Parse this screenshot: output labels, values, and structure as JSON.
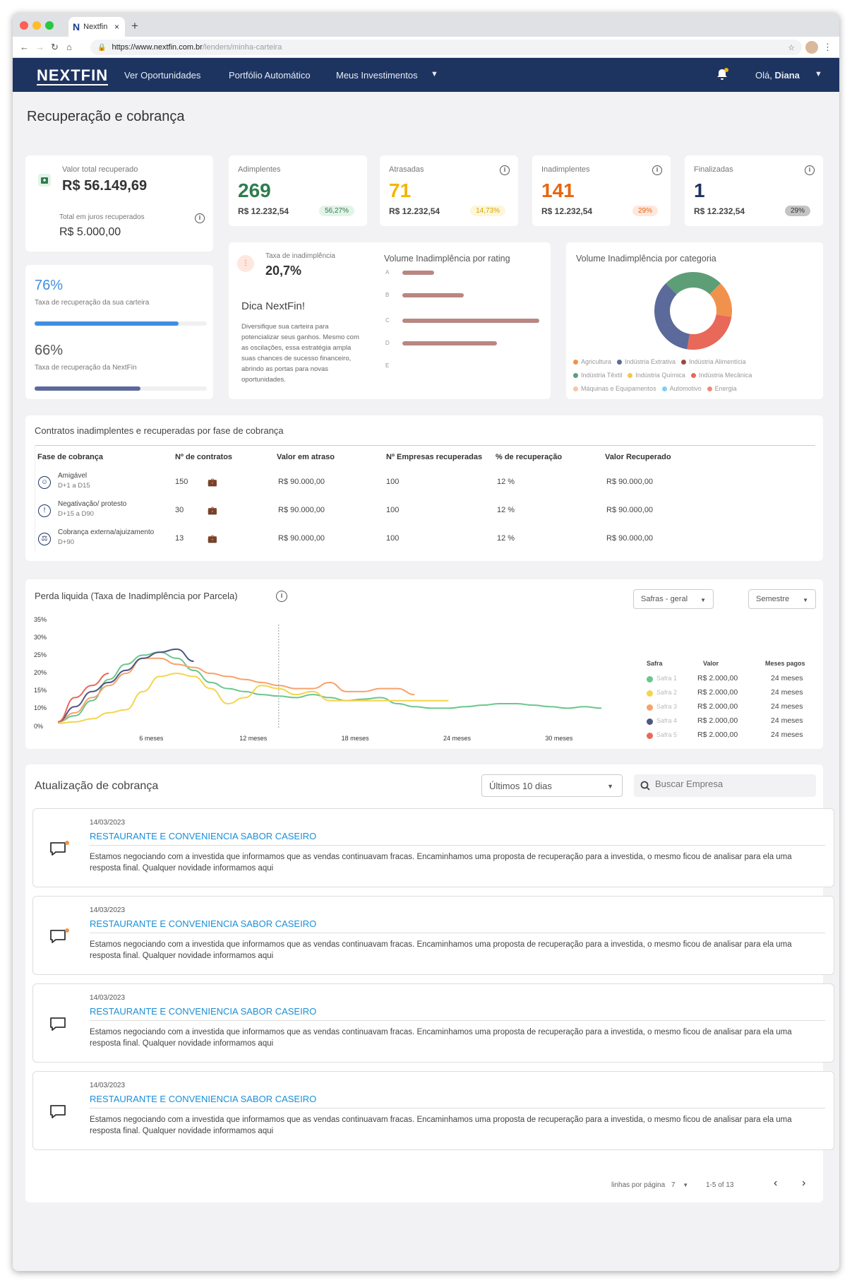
{
  "browser": {
    "tab_title": "Nextfin",
    "url_host": "https://www.nextfin.com.br",
    "url_path": "/lenders/minha-carteira"
  },
  "header": {
    "logo": "NEXTFIN",
    "nav": [
      "Ver Oportunidades",
      "Portfólio Automático",
      "Meus Investimentos"
    ],
    "greeting": "Olá,",
    "user": "Diana"
  },
  "page": {
    "title": "Recuperação e cobrança"
  },
  "summary": {
    "total_label": "Valor total recuperado",
    "total_value": "R$ 56.149,69",
    "interest_label": "Total em juros recuperados",
    "interest_value": "R$ 5.000,00"
  },
  "stats": [
    {
      "label": "Adimplentes",
      "count": "269",
      "amount": "R$ 12.232,54",
      "pct": "56,27%",
      "color": "#2e7d4f",
      "badge_bg": "#e3f3e8",
      "badge_fg": "#2e7d4f"
    },
    {
      "label": "Atrasadas",
      "count": "71",
      "amount": "R$ 12.232,54",
      "pct": "14,73%",
      "color": "#f2b705",
      "badge_bg": "#fdf6d8",
      "badge_fg": "#d9a400"
    },
    {
      "label": "Inadimplentes",
      "count": "141",
      "amount": "R$ 12.232,54",
      "pct": "29%",
      "color": "#e8650d",
      "badge_bg": "#fde7df",
      "badge_fg": "#e8650d"
    },
    {
      "label": "Finalizadas",
      "count": "1",
      "amount": "R$ 12.232,54",
      "pct": "29%",
      "color": "#1d3461",
      "badge_bg": "#c4c4c4",
      "badge_fg": "#333"
    }
  ],
  "recovery": {
    "rate1": "76%",
    "rate1_label": "Taxa de recuperação da sua carteira",
    "rate1_value": 0.76,
    "rate2": "66%",
    "rate2_label": "Taxa de recuperação da NextFin",
    "rate2_value": 0.66
  },
  "default_rate": {
    "label": "Taxa de inadimplência",
    "value": "20,7%",
    "tip_title": "Dica NextFin!",
    "tip_text": "Diversifique sua carteira para potencializar seus ganhos. Mesmo com as oscilações, essa estratégia ampla suas chances de sucesso financeiro, abrindo as portas para novas oportunidades."
  },
  "rating_chart": {
    "title": "Volume Inadimplência por rating",
    "chart_data": {
      "type": "bar",
      "categories": [
        "A",
        "B",
        "C",
        "D",
        "E"
      ],
      "values": [
        0.23,
        0.45,
        1.0,
        0.69,
        0
      ]
    }
  },
  "category_chart": {
    "title": "Volume Inadimplência por categoria",
    "chart_data": {
      "type": "pie",
      "labels": [
        "Agricultura",
        "Indústria Extrativa",
        "Indústria Alimentícia",
        "Indústria Têxtil",
        "Indústria Química",
        "Indústria Mecânica",
        "Máquinas e Equipamentos",
        "Automotivo",
        "Energia"
      ],
      "values": [
        15,
        35,
        0,
        25,
        0,
        25,
        0,
        0,
        0
      ],
      "colors": [
        "#f0924d",
        "#5b6a9a",
        "#a0463f",
        "#5e9e77",
        "#f2c94c",
        "#e8685a",
        "#f5c6a5",
        "#7ecff3",
        "#f08a7a"
      ]
    }
  },
  "table": {
    "title": "Contratos inadimplentes e recuperadas por fase de cobrança",
    "headers": [
      "Fase de cobrança",
      "Nº de contratos",
      "Valor em atraso",
      "Nº Empresas recuperadas",
      "% de recuperação",
      "Valor Recuperado"
    ],
    "rows": [
      {
        "phase": "Amigável",
        "range": "D+1 a D15",
        "contracts": "150",
        "late": "R$ 90.000,00",
        "companies": "100",
        "pct": "12 %",
        "recovered": "R$ 90.000,00"
      },
      {
        "phase": "Negativação/ protesto",
        "range": "D+15 a D90",
        "contracts": "30",
        "late": "R$ 90.000,00",
        "companies": "100",
        "pct": "12 %",
        "recovered": "R$ 90.000,00"
      },
      {
        "phase": "Cobrança externa/ajuizamento",
        "range": "D+90",
        "contracts": "13",
        "late": "R$ 90.000,00",
        "companies": "100",
        "pct": "12 %",
        "recovered": "R$ 90.000,00"
      }
    ]
  },
  "loss_chart": {
    "title": "Perda liquida (Taxa de Inadimplência por Parcela)",
    "filter1": "Safras - geral",
    "filter2": "Semestre",
    "legend_headers": [
      "Safra",
      "Valor",
      "Meses pagos"
    ],
    "legend": [
      {
        "name": "Safra 1",
        "value": "R$ 2.000,00",
        "months": "24 meses",
        "color": "#6cc68d"
      },
      {
        "name": "Safra 2",
        "value": "R$ 2.000,00",
        "months": "24 meses",
        "color": "#f6d44b"
      },
      {
        "name": "Safra 3",
        "value": "R$ 2.000,00",
        "months": "24 meses",
        "color": "#f7a26b"
      },
      {
        "name": "Safra 4",
        "value": "R$ 2.000,00",
        "months": "24 meses",
        "color": "#4c5880"
      },
      {
        "name": "Safra 5",
        "value": "R$ 2.000,00",
        "months": "24 meses",
        "color": "#e8685a"
      }
    ],
    "chart_data": {
      "type": "line",
      "y_ticks": [
        "35%",
        "30%",
        "25%",
        "20%",
        "15%",
        "10%",
        "0%"
      ],
      "x_ticks": [
        "6 meses",
        "12 meses",
        "18 meses",
        "24 meses",
        "30 meses"
      ],
      "ylim": [
        0,
        35
      ],
      "xlim": [
        1,
        33
      ],
      "series": [
        {
          "name": "Safra 1",
          "x": [
            1,
            2,
            3,
            4,
            5,
            6,
            7,
            8,
            9,
            10,
            11,
            12,
            13,
            14,
            15,
            16,
            17,
            18,
            19,
            20,
            21,
            22,
            23,
            24,
            25,
            26,
            27,
            28,
            29,
            30,
            31,
            32,
            33
          ],
          "y": [
            1,
            3,
            8,
            15,
            20,
            23,
            24,
            22,
            18,
            14,
            12,
            11,
            10,
            9.5,
            9,
            10,
            9,
            8,
            8.5,
            9,
            7,
            6,
            5.5,
            5.5,
            6,
            6.5,
            7,
            7,
            6.5,
            6,
            5.5,
            6,
            5.5
          ]
        },
        {
          "name": "Safra 2",
          "x": [
            1,
            2,
            3,
            4,
            5,
            6,
            7,
            8,
            9,
            10,
            11,
            12,
            13,
            14,
            15,
            16,
            17,
            18,
            19,
            20,
            21,
            22,
            23,
            24
          ],
          "y": [
            0.5,
            1,
            2,
            4,
            5,
            11,
            16,
            17,
            16,
            12,
            7,
            9,
            13,
            12,
            10,
            11,
            8,
            8,
            8,
            8,
            8,
            8,
            8,
            8
          ]
        },
        {
          "name": "Safra 3",
          "x": [
            1,
            2,
            3,
            4,
            5,
            6,
            7,
            8,
            9,
            10,
            11,
            12,
            13,
            14,
            15,
            16,
            17,
            18,
            19,
            20,
            21,
            22
          ],
          "y": [
            1,
            4,
            9,
            13,
            17,
            22,
            22,
            20,
            19,
            17,
            16,
            15,
            14,
            13,
            12,
            12,
            14,
            11,
            11,
            12,
            12,
            10
          ]
        },
        {
          "name": "Safra 4",
          "x": [
            1,
            2,
            3,
            4,
            5,
            6,
            7,
            8,
            9
          ],
          "y": [
            1,
            6,
            11,
            14,
            18,
            22,
            24,
            25,
            21
          ]
        },
        {
          "name": "Safra 5",
          "x": [
            1,
            2,
            3,
            4
          ],
          "y": [
            1,
            9,
            13,
            17
          ]
        }
      ]
    }
  },
  "updates": {
    "title": "Atualização de cobrança",
    "filter": "Últimos 10 dias",
    "search_placeholder": "Buscar Empresa",
    "items": [
      {
        "date": "14/03/2023",
        "company": "RESTAURANTE E CONVENIENCIA SABOR CASEIRO",
        "text": "Estamos negociando com a investida que informamos que as vendas continuavam fracas. Encaminhamos uma proposta de recuperação para a investida, o mesmo ficou de analisar para ela uma resposta final. Qualquer novidade informamos aqui",
        "unread": true
      },
      {
        "date": "14/03/2023",
        "company": "RESTAURANTE E CONVENIENCIA SABOR CASEIRO",
        "text": "Estamos negociando com a investida que informamos que as vendas continuavam fracas. Encaminhamos uma proposta de recuperação para a investida, o mesmo ficou de analisar para ela uma resposta final. Qualquer novidade informamos aqui",
        "unread": true
      },
      {
        "date": "14/03/2023",
        "company": "RESTAURANTE E CONVENIENCIA SABOR CASEIRO",
        "text": "Estamos negociando com a investida que informamos que as vendas continuavam fracas. Encaminhamos uma proposta de recuperação para a investida, o mesmo ficou de analisar para ela uma resposta final. Qualquer novidade informamos aqui",
        "unread": false
      },
      {
        "date": "14/03/2023",
        "company": "RESTAURANTE E CONVENIENCIA SABOR CASEIRO",
        "text": "Estamos negociando com a investida que informamos que as vendas continuavam fracas. Encaminhamos uma proposta de recuperação para a investida, o mesmo ficou de analisar para ela uma resposta final. Qualquer novidade informamos aqui",
        "unread": false
      }
    ]
  },
  "pagination": {
    "rows_label": "linhas por página",
    "rows_value": "7",
    "range": "1-5 of 13"
  }
}
